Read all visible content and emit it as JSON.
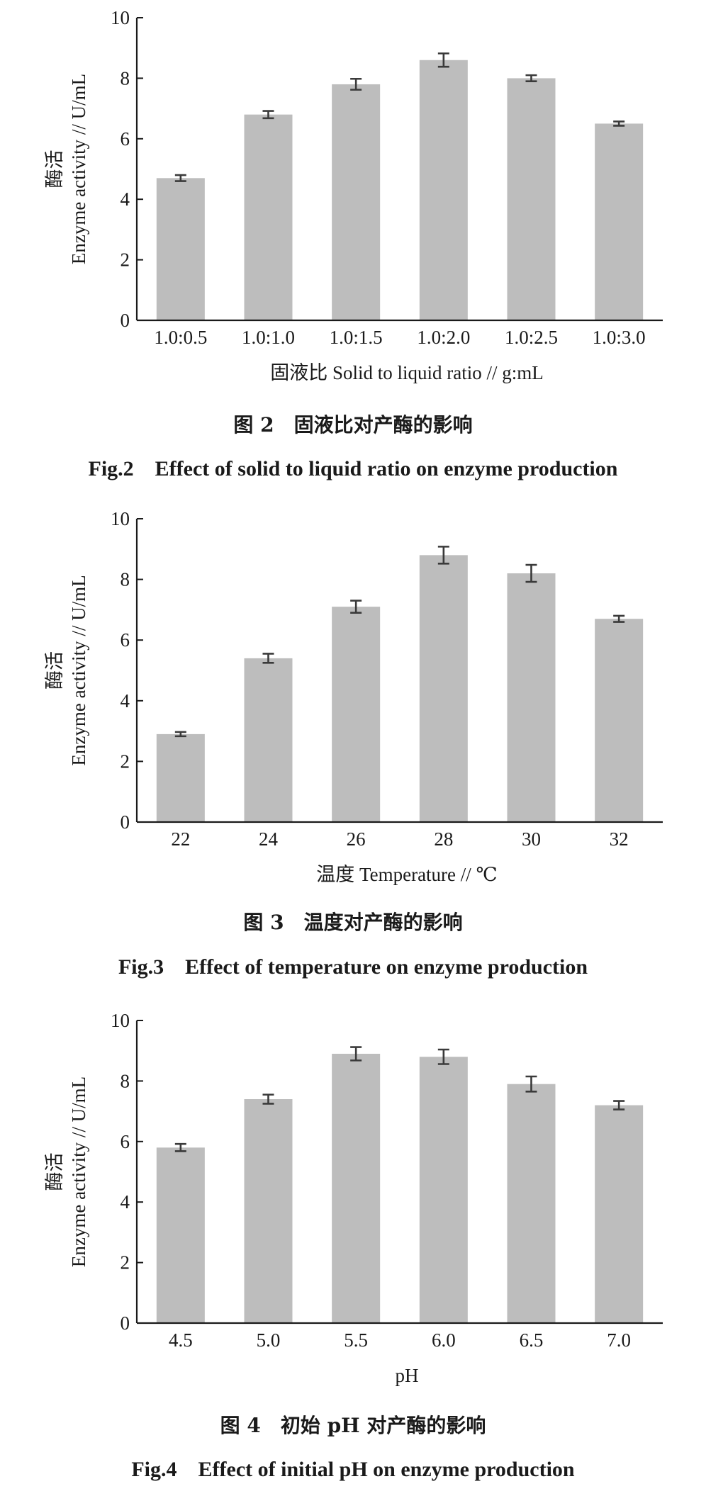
{
  "chart_data": [
    {
      "type": "bar",
      "categories": [
        "1.0:0.5",
        "1.0:1.0",
        "1.0:1.5",
        "1.0:2.0",
        "1.0:2.5",
        "1.0:3.0"
      ],
      "values": [
        4.7,
        6.8,
        7.8,
        8.6,
        8.0,
        6.5
      ],
      "errors": [
        0.1,
        0.12,
        0.18,
        0.22,
        0.1,
        0.07
      ],
      "ylabel_cn": "酶活",
      "ylabel": "Enzyme activity // U/mL",
      "xlabel": "固液比 Solid to liquid ratio // g:mL",
      "ylim": [
        0,
        10
      ],
      "yticks": [
        0,
        2,
        4,
        6,
        8,
        10
      ],
      "caption_cn": "图 2　固液比对产酶的影响",
      "caption_en": "Fig.2　Effect of solid to liquid ratio on enzyme production"
    },
    {
      "type": "bar",
      "categories": [
        "22",
        "24",
        "26",
        "28",
        "30",
        "32"
      ],
      "values": [
        2.9,
        5.4,
        7.1,
        8.8,
        8.2,
        6.7
      ],
      "errors": [
        0.07,
        0.15,
        0.2,
        0.28,
        0.28,
        0.1
      ],
      "ylabel_cn": "酶活",
      "ylabel": "Enzyme activity // U/mL",
      "xlabel": "温度 Temperature // ℃",
      "ylim": [
        0,
        10
      ],
      "yticks": [
        0,
        2,
        4,
        6,
        8,
        10
      ],
      "caption_cn": "图 3　温度对产酶的影响",
      "caption_en": "Fig.3　Effect of temperature on enzyme production"
    },
    {
      "type": "bar",
      "categories": [
        "4.5",
        "5.0",
        "5.5",
        "6.0",
        "6.5",
        "7.0"
      ],
      "values": [
        5.8,
        7.4,
        8.9,
        8.8,
        7.9,
        7.2
      ],
      "errors": [
        0.12,
        0.15,
        0.22,
        0.24,
        0.25,
        0.14
      ],
      "ylabel_cn": "酶活",
      "ylabel": "Enzyme activity // U/mL",
      "xlabel": "pH",
      "ylim": [
        0,
        10
      ],
      "yticks": [
        0,
        2,
        4,
        6,
        8,
        10
      ],
      "caption_cn": "图 4　初始 pH 对产酶的影响",
      "caption_en": "Fig.4　Effect of initial pH on enzyme production"
    }
  ],
  "colors": {
    "bar": "#bdbdbd",
    "axis": "#1a1a1a",
    "error_bar": "#3a3a3a"
  }
}
